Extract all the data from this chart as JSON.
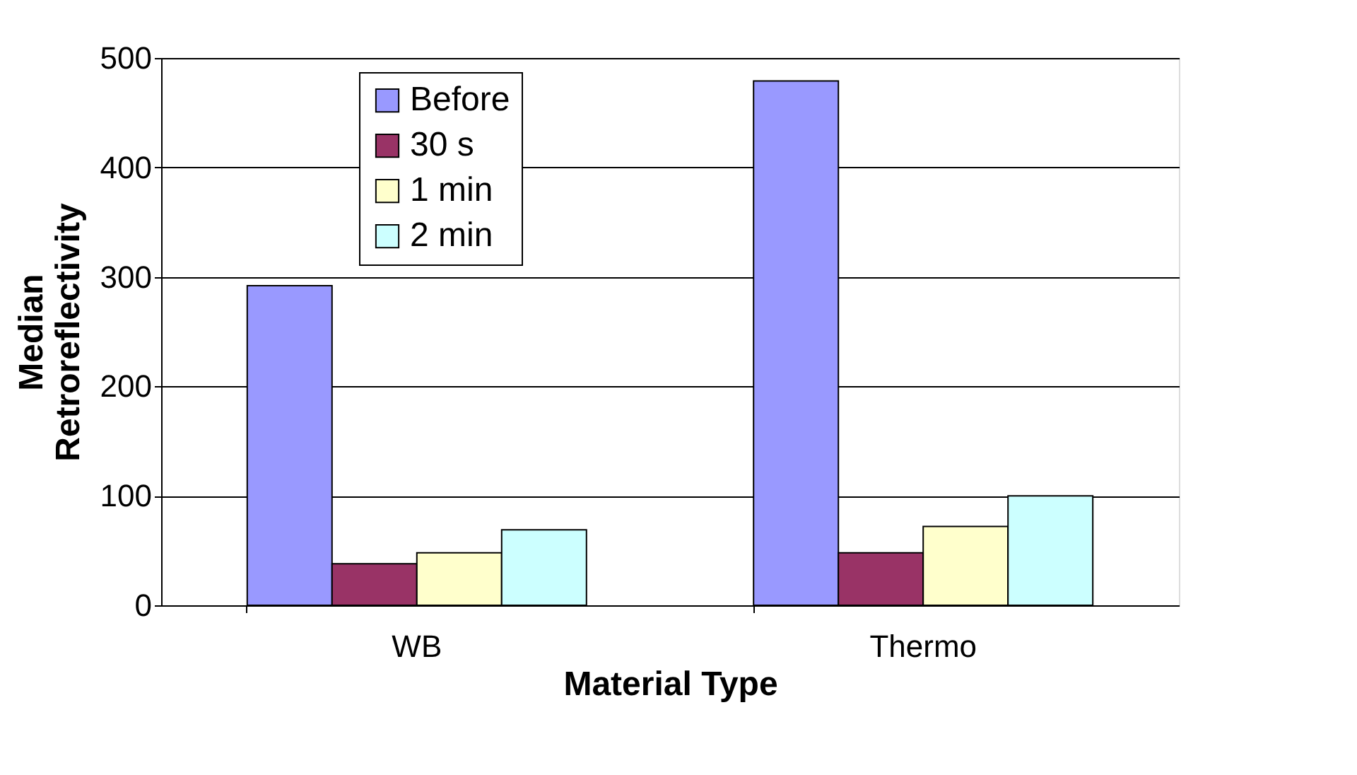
{
  "chart_data": {
    "type": "bar",
    "xlabel": "Material Type",
    "ylabel": "Median\nRetroreflectivity",
    "categories": [
      "WB",
      "Thermo"
    ],
    "series": [
      {
        "name": "Before",
        "color": "#9999ff",
        "values": [
          292,
          479
        ]
      },
      {
        "name": "30 s",
        "color": "#993366",
        "values": [
          38,
          48
        ]
      },
      {
        "name": "1 min",
        "color": "#ffffcc",
        "values": [
          48,
          72
        ]
      },
      {
        "name": "2 min",
        "color": "#ccffff",
        "values": [
          69,
          100
        ]
      }
    ],
    "ylim": [
      0,
      500
    ],
    "yticks": [
      0,
      100,
      200,
      300,
      400,
      500
    ],
    "grid": "y",
    "legend": "top"
  }
}
